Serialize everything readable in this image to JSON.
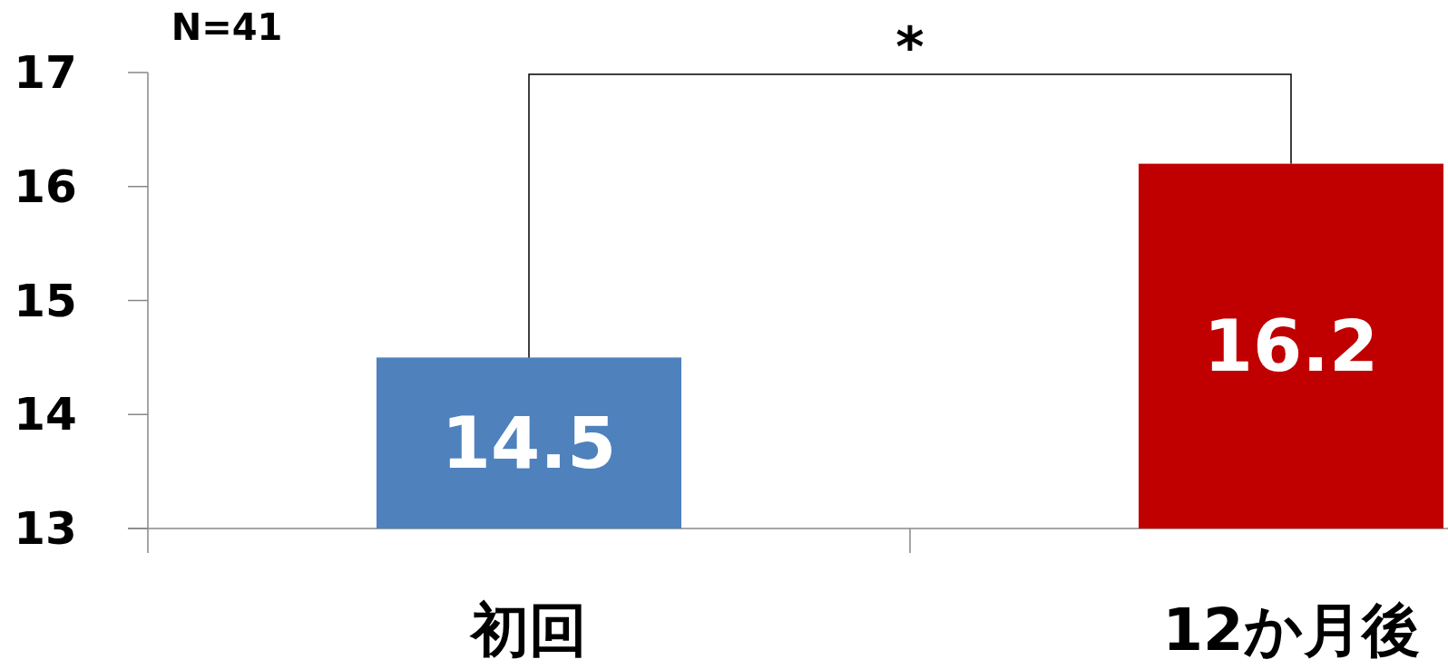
{
  "chart_data": {
    "type": "bar",
    "categories": [
      "初回",
      "12か月後"
    ],
    "values": [
      14.5,
      16.2
    ],
    "colors": [
      "#4f81bd",
      "#c00000"
    ],
    "ylim": [
      13,
      17
    ],
    "yticks": [
      13,
      14,
      15,
      16,
      17
    ],
    "data_labels": true,
    "annotations": [
      "N=41",
      "*"
    ]
  }
}
